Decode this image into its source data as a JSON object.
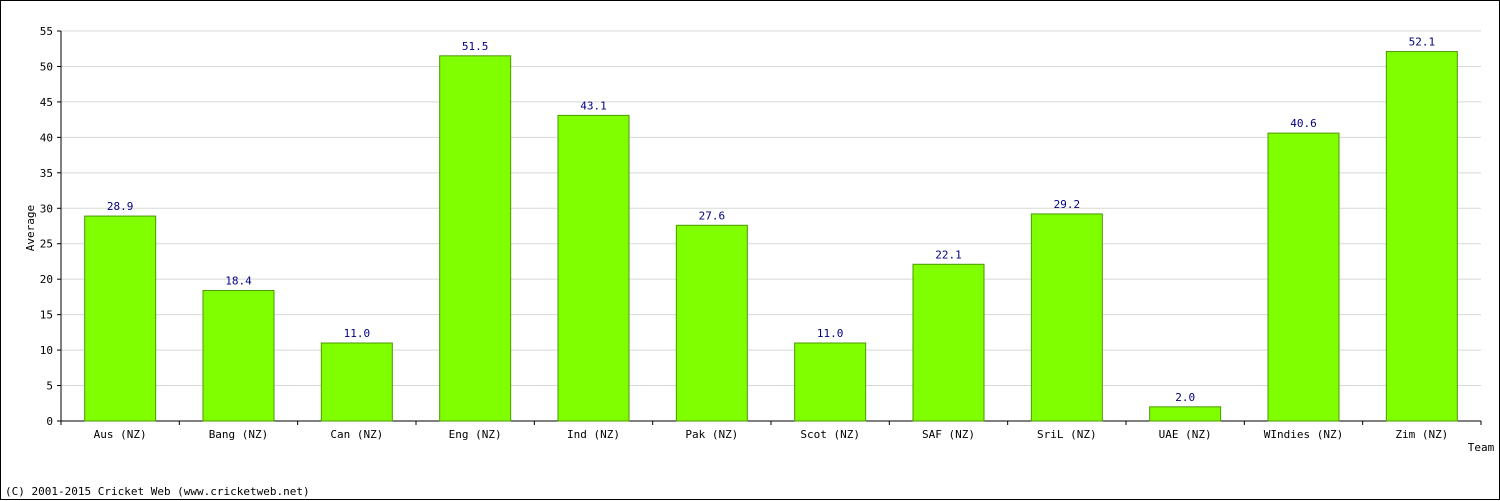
{
  "chart_data": {
    "type": "bar",
    "categories": [
      "Aus (NZ)",
      "Bang (NZ)",
      "Can (NZ)",
      "Eng (NZ)",
      "Ind (NZ)",
      "Pak (NZ)",
      "Scot (NZ)",
      "SAF (NZ)",
      "SriL (NZ)",
      "UAE (NZ)",
      "WIndies (NZ)",
      "Zim (NZ)"
    ],
    "values": [
      28.9,
      18.4,
      11.0,
      51.5,
      43.1,
      27.6,
      11.0,
      22.1,
      29.2,
      2.0,
      40.6,
      52.1
    ],
    "value_labels": [
      "28.9",
      "18.4",
      "11.0",
      "51.5",
      "43.1",
      "27.6",
      "11.0",
      "22.1",
      "29.2",
      "2.0",
      "40.6",
      "52.1"
    ],
    "xlabel": "Team",
    "ylabel": "Average",
    "ylim": [
      0,
      55
    ],
    "yticks": [
      "0",
      "5",
      "10",
      "15",
      "20",
      "25",
      "30",
      "35",
      "40",
      "45",
      "50",
      "55"
    ],
    "grid": true,
    "bar_color": "#80ff00"
  },
  "footer": "(C) 2001-2015 Cricket Web (www.cricketweb.net)"
}
